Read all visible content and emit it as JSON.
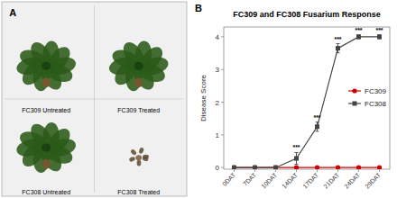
{
  "chart_data": [
    {
      "type": "image",
      "annotations": [
        {
          "text": "A"
        },
        {
          "text": "FC309 Untreated"
        },
        {
          "text": "FC309 Treated"
        },
        {
          "text": "FC308 Untreated"
        },
        {
          "text": "FC308 Treated"
        }
      ]
    },
    {
      "type": "line",
      "title": "FC309 and FC308 Fusarium Response",
      "ylabel": "Disease Score",
      "categories": [
        "0DAT",
        "7DAT",
        "10DAT",
        "14DAT",
        "17DAT",
        "21DAT",
        "24DAT",
        "29DAT"
      ],
      "series": [
        {
          "name": "FC309",
          "color": "#cc0000",
          "marker": "circle",
          "values": [
            0,
            0,
            0,
            0,
            0,
            0,
            0,
            0
          ],
          "errors": [
            0.03,
            0.03,
            0.03,
            0.03,
            0.03,
            0.03,
            0.03,
            0.03
          ]
        },
        {
          "name": "FC308",
          "color": "#444444",
          "marker": "square",
          "values": [
            0,
            0,
            0,
            0.28,
            1.25,
            3.65,
            4.0,
            4.0
          ],
          "errors": [
            0.03,
            0.03,
            0.03,
            0.18,
            0.14,
            0.14,
            0.06,
            0.06
          ]
        }
      ],
      "ylim": [
        -0.05,
        4.3
      ],
      "yticks": [
        0,
        1,
        2,
        3,
        4
      ],
      "grid": false,
      "legend": "right",
      "annotations": [
        {
          "text": "B"
        },
        {
          "text": "***",
          "category": "14DAT"
        },
        {
          "text": "***",
          "category": "17DAT"
        },
        {
          "text": "***",
          "category": "21DAT"
        },
        {
          "text": "***",
          "category": "24DAT"
        },
        {
          "text": "***",
          "category": "29DAT"
        }
      ]
    }
  ]
}
